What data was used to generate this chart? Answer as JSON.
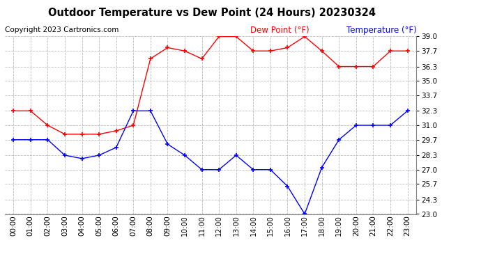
{
  "title": "Outdoor Temperature vs Dew Point (24 Hours) 20230324",
  "copyright": "Copyright 2023 Cartronics.com",
  "legend_dew": "Dew Point (°F)",
  "legend_temp": "Temperature (°F)",
  "hours": [
    "00:00",
    "01:00",
    "02:00",
    "03:00",
    "04:00",
    "05:00",
    "06:00",
    "07:00",
    "08:00",
    "09:00",
    "10:00",
    "11:00",
    "12:00",
    "13:00",
    "14:00",
    "15:00",
    "16:00",
    "17:00",
    "18:00",
    "19:00",
    "20:00",
    "21:00",
    "22:00",
    "23:00"
  ],
  "temperature": [
    29.7,
    29.7,
    29.7,
    28.3,
    28.0,
    28.3,
    29.0,
    32.3,
    32.3,
    29.3,
    28.3,
    27.0,
    27.0,
    28.3,
    27.0,
    27.0,
    25.5,
    23.0,
    27.2,
    29.7,
    31.0,
    31.0,
    31.0,
    32.3
  ],
  "dew_point": [
    32.3,
    32.3,
    31.0,
    30.2,
    30.2,
    30.2,
    30.5,
    31.0,
    37.0,
    38.0,
    37.7,
    37.0,
    39.0,
    39.0,
    37.7,
    37.7,
    38.0,
    39.0,
    37.7,
    36.3,
    36.3,
    36.3,
    37.7,
    37.7
  ],
  "temp_color": "blue",
  "dew_color": "red",
  "ylim_min": 23.0,
  "ylim_max": 39.0,
  "yticks": [
    23.0,
    24.3,
    25.7,
    27.0,
    28.3,
    29.7,
    31.0,
    32.3,
    33.7,
    35.0,
    36.3,
    37.7,
    39.0
  ],
  "bg_color": "white",
  "grid_color": "#bbbbbb",
  "title_fontsize": 10.5,
  "copyright_fontsize": 7.5,
  "legend_fontsize": 8.5,
  "tick_fontsize": 7.5
}
